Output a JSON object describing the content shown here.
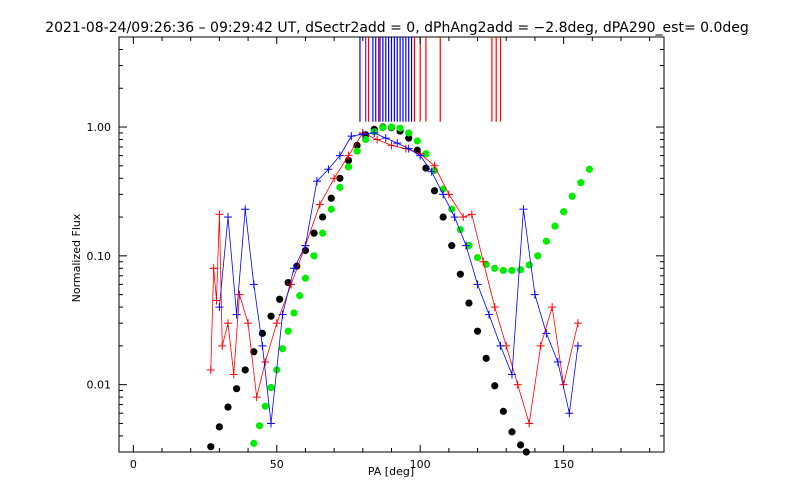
{
  "chart_data": {
    "type": "scatter",
    "title": "2021-08-24/09:26:36 – 09:29:42 UT, dSectr2add = 0, dPhAng2add = −2.8deg, dPA290_est=  0.0deg",
    "xlabel": "PA [deg]",
    "ylabel": "Normalized Flux",
    "xlim": [
      -5,
      185
    ],
    "ylim": [
      0.003,
      5
    ],
    "yscale": "log",
    "xticks": [
      0,
      50,
      100,
      150
    ],
    "xtick_labels": [
      "0",
      "50",
      "100",
      "150"
    ],
    "yticks": [
      0.01,
      0.1,
      1.0
    ],
    "ytick_labels": [
      "0.01",
      "0.10",
      "1.00"
    ],
    "grid": false,
    "legend": "none",
    "colors": {
      "red_series": "#ff0000",
      "blue_series": "#0000ff",
      "black_fit": "#000000",
      "green_fit": "#00ee00",
      "purple_marker": "#7a1fa0"
    },
    "series": [
      {
        "color": "#000000",
        "marker": "dot",
        "x": [
          27,
          30,
          33,
          36,
          39,
          42,
          45,
          48,
          51,
          54,
          57,
          60,
          63,
          66,
          69,
          72,
          75,
          78,
          81,
          84,
          87,
          90,
          93,
          96,
          99,
          102,
          105,
          108,
          111,
          114,
          117,
          120,
          123,
          126,
          129,
          132,
          135,
          137
        ],
        "y": [
          0.0033,
          0.0047,
          0.0067,
          0.0093,
          0.013,
          0.018,
          0.025,
          0.034,
          0.046,
          0.062,
          0.083,
          0.11,
          0.15,
          0.2,
          0.28,
          0.4,
          0.55,
          0.72,
          0.87,
          0.96,
          1.0,
          0.99,
          0.93,
          0.82,
          0.66,
          0.48,
          0.32,
          0.2,
          0.12,
          0.072,
          0.043,
          0.026,
          0.016,
          0.0098,
          0.0062,
          0.0043,
          0.0034,
          0.003
        ]
      },
      {
        "color": "#00ee00",
        "marker": "dot",
        "x": [
          42,
          44,
          46,
          48,
          50,
          52,
          54,
          56,
          58,
          60,
          63,
          66,
          69,
          72,
          75,
          78,
          81,
          84,
          87,
          90,
          93,
          96,
          99,
          102,
          105,
          108,
          111,
          114,
          117,
          120,
          123,
          126,
          129,
          132,
          135,
          138,
          141,
          144,
          147,
          150,
          153,
          156,
          159
        ],
        "y": [
          0.0035,
          0.0048,
          0.0068,
          0.0095,
          0.013,
          0.019,
          0.026,
          0.036,
          0.049,
          0.067,
          0.1,
          0.15,
          0.23,
          0.34,
          0.49,
          0.65,
          0.8,
          0.92,
          0.99,
          1.0,
          0.98,
          0.9,
          0.78,
          0.62,
          0.46,
          0.33,
          0.23,
          0.16,
          0.12,
          0.097,
          0.086,
          0.08,
          0.077,
          0.077,
          0.078,
          0.085,
          0.1,
          0.13,
          0.17,
          0.22,
          0.29,
          0.37,
          0.47
        ]
      },
      {
        "color": "#ff0000",
        "marker": "plus",
        "x": [
          27,
          28,
          29,
          30,
          31,
          33,
          35,
          37,
          40,
          43,
          46,
          50,
          55,
          60,
          65,
          70,
          75,
          80,
          85,
          90,
          95,
          100,
          105,
          110,
          115,
          118,
          122,
          126,
          130,
          134,
          138,
          142,
          146,
          150,
          155
        ],
        "y": [
          0.013,
          0.08,
          0.045,
          0.21,
          0.02,
          0.03,
          0.012,
          0.05,
          0.03,
          0.008,
          0.015,
          0.03,
          0.06,
          0.12,
          0.25,
          0.4,
          0.6,
          0.9,
          0.8,
          0.72,
          0.68,
          0.62,
          0.5,
          0.3,
          0.2,
          0.21,
          0.09,
          0.04,
          0.02,
          0.01,
          0.005,
          0.02,
          0.04,
          0.01,
          0.03
        ]
      },
      {
        "color": "#0000ff",
        "marker": "plus",
        "x": [
          30,
          33,
          36,
          39,
          42,
          45,
          48,
          52,
          56,
          60,
          64,
          68,
          72,
          76,
          80,
          84,
          88,
          92,
          96,
          100,
          104,
          108,
          112,
          116,
          120,
          124,
          128,
          132,
          136,
          140,
          144,
          148,
          152,
          155
        ],
        "y": [
          0.04,
          0.2,
          0.035,
          0.23,
          0.06,
          0.02,
          0.005,
          0.035,
          0.08,
          0.12,
          0.38,
          0.47,
          0.6,
          0.85,
          0.88,
          0.9,
          0.82,
          0.75,
          0.68,
          0.6,
          0.45,
          0.3,
          0.2,
          0.12,
          0.06,
          0.035,
          0.02,
          0.012,
          0.23,
          0.05,
          0.025,
          0.015,
          0.006,
          0.02
        ]
      }
    ],
    "vertical_markers": [
      {
        "x": 79,
        "color": "#0000ff"
      },
      {
        "x": 81,
        "color": "#7a1fa0"
      },
      {
        "x": 82,
        "color": "#ff0000"
      },
      {
        "x": 83.5,
        "color": "#0000ff"
      },
      {
        "x": 84.5,
        "color": "#0000ff"
      },
      {
        "x": 85.5,
        "color": "#ff0000"
      },
      {
        "x": 86,
        "color": "#0000ff"
      },
      {
        "x": 87,
        "color": "#0000ff"
      },
      {
        "x": 88,
        "color": "#0000ff"
      },
      {
        "x": 89,
        "color": "#0000ff"
      },
      {
        "x": 90,
        "color": "#0000ff"
      },
      {
        "x": 91,
        "color": "#0000ff"
      },
      {
        "x": 92,
        "color": "#0000ff"
      },
      {
        "x": 93,
        "color": "#0000ff"
      },
      {
        "x": 94,
        "color": "#0000ff"
      },
      {
        "x": 95,
        "color": "#0000ff"
      },
      {
        "x": 96,
        "color": "#0000ff"
      },
      {
        "x": 97,
        "color": "#0000ff"
      },
      {
        "x": 98,
        "color": "#ff0000"
      },
      {
        "x": 100,
        "color": "#ff0000"
      },
      {
        "x": 102,
        "color": "#ff0000"
      },
      {
        "x": 107,
        "color": "#ff0000"
      },
      {
        "x": 125,
        "color": "#ff0000"
      },
      {
        "x": 126.5,
        "color": "#ff0000"
      },
      {
        "x": 128,
        "color": "#ff0000"
      }
    ],
    "vertical_markers_ymin": 1.1
  }
}
